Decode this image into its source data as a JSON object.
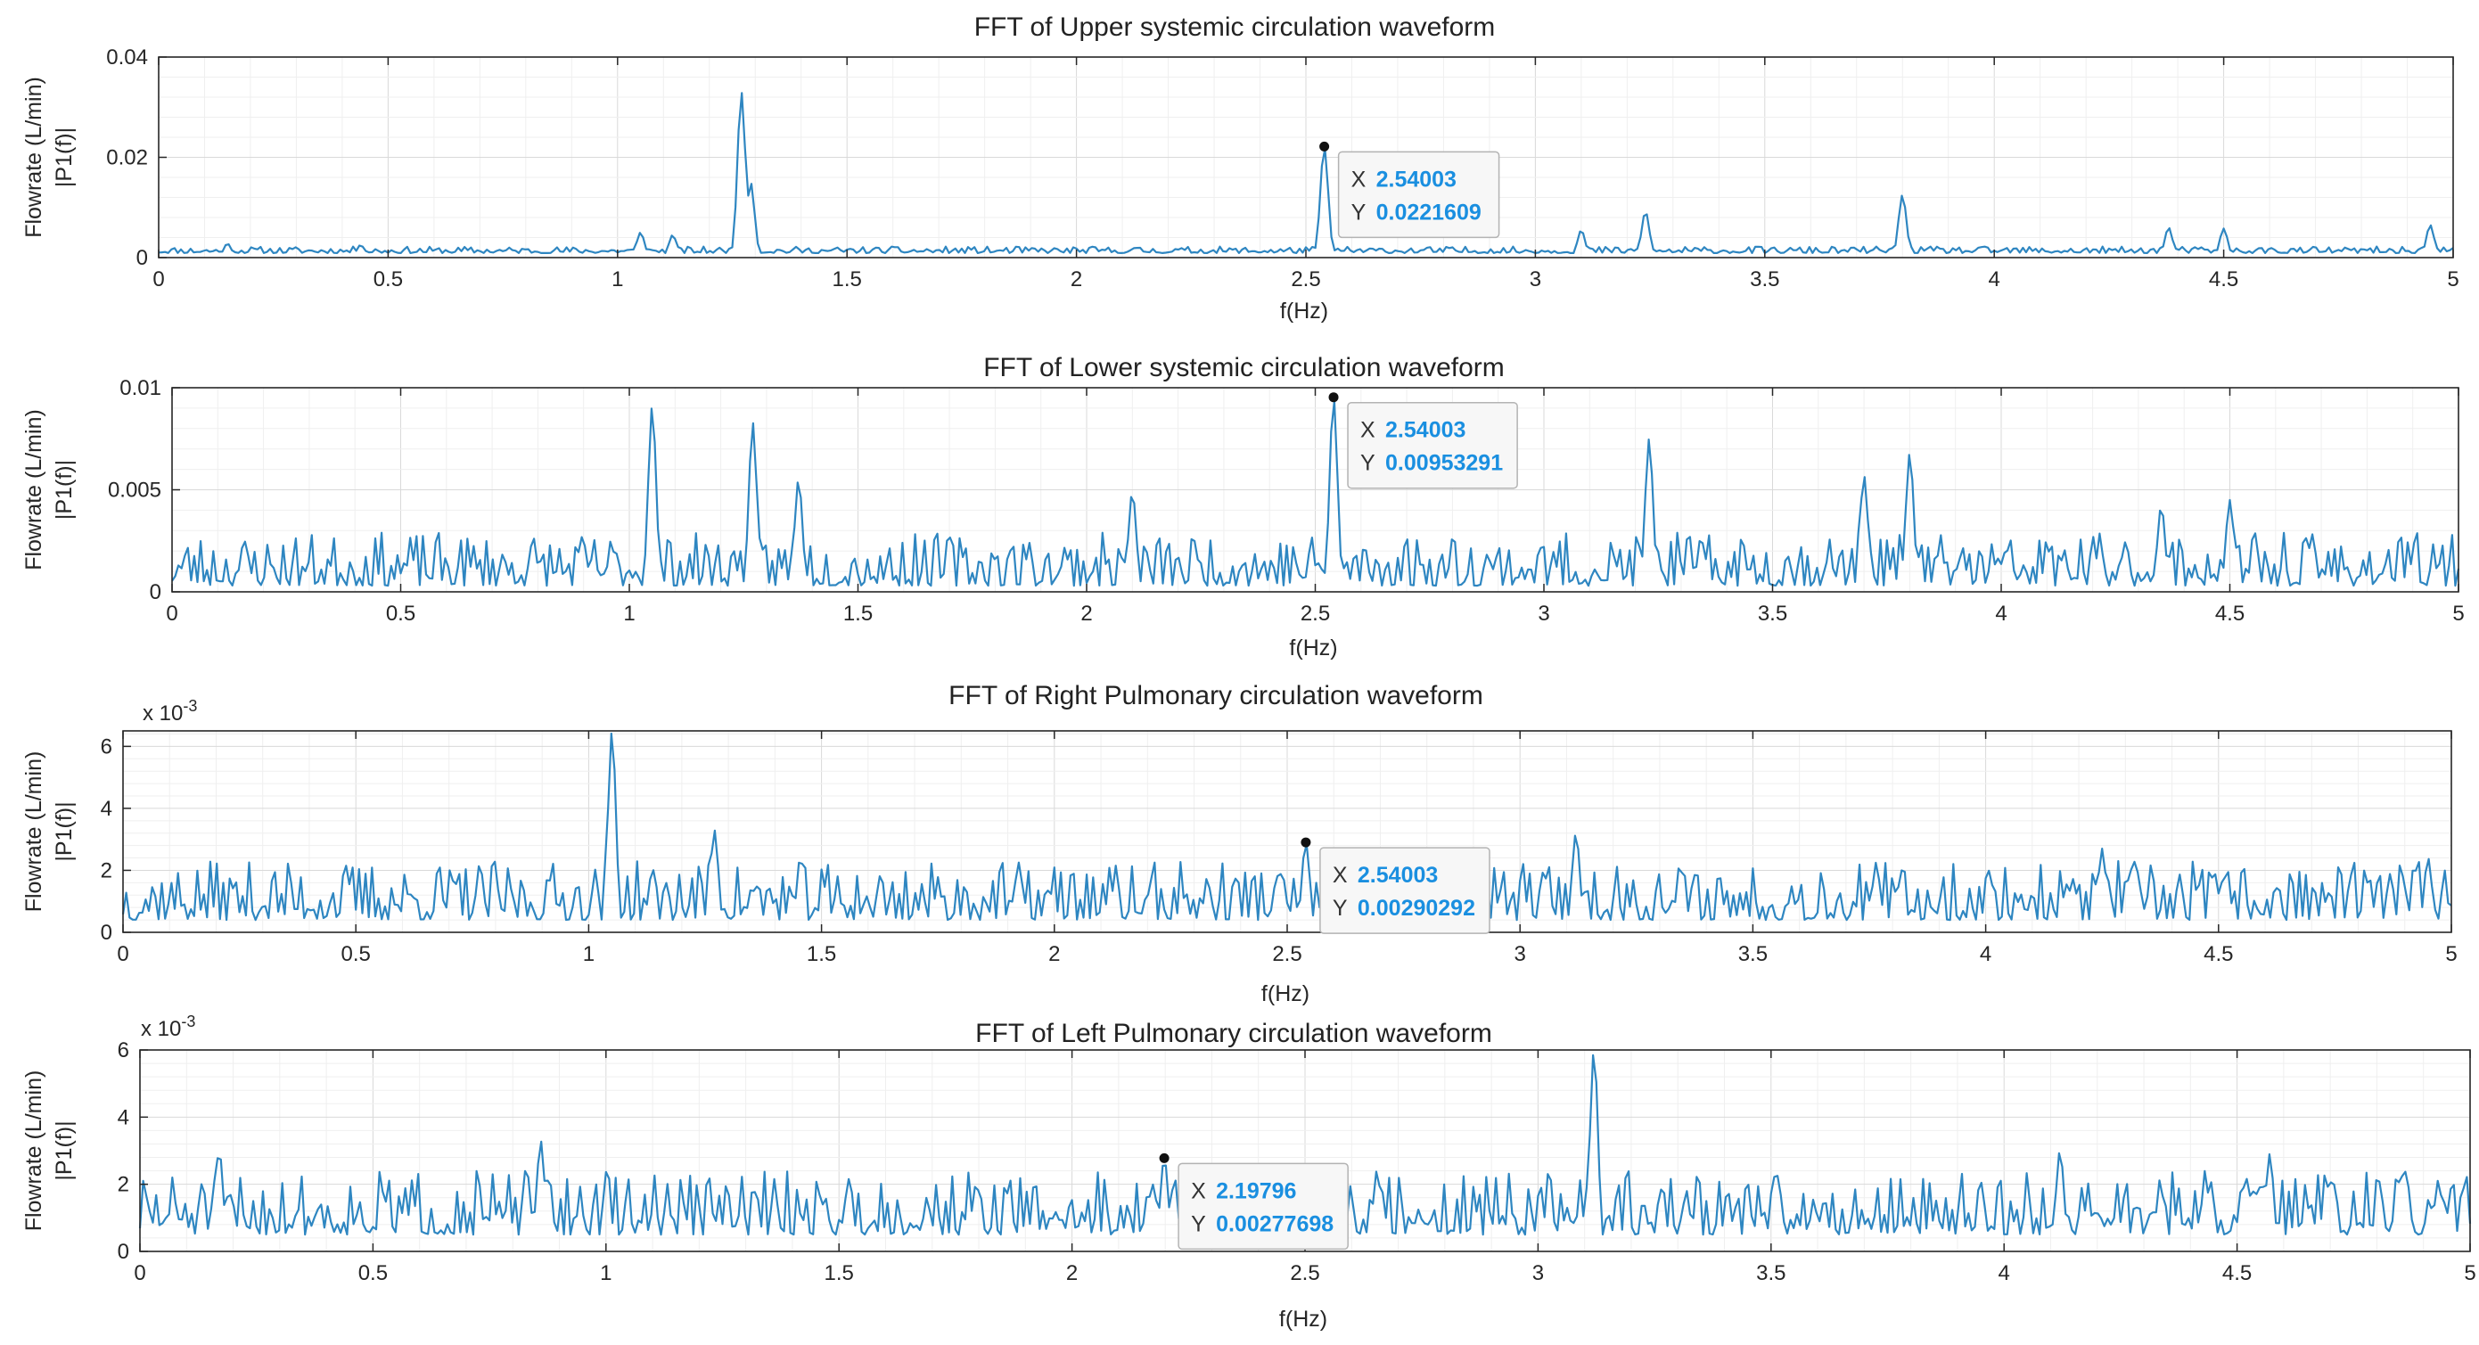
{
  "colors": {
    "line": "#2e86c1",
    "axis": "#262626",
    "grid_major": "#d9d9d9",
    "grid_minor": "#efefef",
    "tip_border": "#b3b3b3",
    "tip_bg": "#f7f7f7",
    "tip_value": "#1a8fe0",
    "marker": "#111111"
  },
  "chart_data": [
    {
      "type": "line",
      "title": "FFT of Upper systemic circulation waveform",
      "xlabel": "f(Hz)",
      "ylabel": [
        "Flowrate (L/min)",
        "|P1(f)|"
      ],
      "xlim": [
        0,
        5
      ],
      "ylim": [
        0,
        0.04
      ],
      "xticks": [
        0,
        0.5,
        1,
        1.5,
        2,
        2.5,
        3,
        3.5,
        4,
        4.5,
        5
      ],
      "xtick_labels": [
        "0",
        "0.5",
        "1",
        "1.5",
        "2",
        "2.5",
        "3",
        "3.5",
        "4",
        "4.5",
        "5"
      ],
      "yticks": [
        0,
        0.02,
        0.04
      ],
      "ytick_labels": [
        "0",
        "0.02",
        "0.04"
      ],
      "exponent": "",
      "grid": true,
      "noise": {
        "base": 0.0009,
        "amp": 0.0013,
        "seed": 11
      },
      "peaks": [
        [
          0.15,
          0.0028
        ],
        [
          0.44,
          0.0025
        ],
        [
          1.05,
          0.005
        ],
        [
          1.12,
          0.0045
        ],
        [
          1.27,
          0.033
        ],
        [
          1.29,
          0.015
        ],
        [
          2.54,
          0.0221609
        ],
        [
          3.1,
          0.0055
        ],
        [
          3.24,
          0.0092
        ],
        [
          3.8,
          0.0125
        ],
        [
          4.38,
          0.006
        ],
        [
          4.5,
          0.0058
        ],
        [
          4.95,
          0.0065
        ]
      ],
      "datatip": {
        "x_label": "X",
        "y_label": "Y",
        "x_text": "2.54003",
        "y_text": "0.0221609",
        "x": 2.54003,
        "y": 0.0221609
      }
    },
    {
      "type": "line",
      "title": "FFT of Lower systemic circulation waveform",
      "xlabel": "f(Hz)",
      "ylabel": [
        "Flowrate (L/min)",
        "|P1(f)|"
      ],
      "xlim": [
        0,
        5
      ],
      "ylim": [
        0,
        0.01
      ],
      "xticks": [
        0,
        0.5,
        1,
        1.5,
        2,
        2.5,
        3,
        3.5,
        4,
        4.5,
        5
      ],
      "xtick_labels": [
        "0",
        "0.5",
        "1",
        "1.5",
        "2",
        "2.5",
        "3",
        "3.5",
        "4",
        "4.5",
        "5"
      ],
      "yticks": [
        0,
        0.005,
        0.01
      ],
      "ytick_labels": [
        "0",
        "0.005",
        "0.01"
      ],
      "exponent": "",
      "grid": true,
      "noise": {
        "base": 0.0003,
        "amp": 0.0026,
        "seed": 23
      },
      "peaks": [
        [
          1.05,
          0.0091
        ],
        [
          1.27,
          0.0083
        ],
        [
          1.37,
          0.0055
        ],
        [
          2.1,
          0.0049
        ],
        [
          2.54,
          0.00953291
        ],
        [
          3.23,
          0.0075
        ],
        [
          3.7,
          0.0057
        ],
        [
          3.8,
          0.0068
        ],
        [
          4.35,
          0.0042
        ],
        [
          4.5,
          0.0045
        ]
      ],
      "datatip": {
        "x_label": "X",
        "y_label": "Y",
        "x_text": "2.54003",
        "y_text": "0.00953291",
        "x": 2.54003,
        "y": 0.00953291
      }
    },
    {
      "type": "line",
      "title": "FFT of Right Pulmonary circulation waveform",
      "xlabel": "f(Hz)",
      "ylabel": [
        "Flowrate (L/min)",
        "|P1(f)|"
      ],
      "xlim": [
        0,
        5
      ],
      "ylim": [
        0,
        0.0065
      ],
      "xticks": [
        0,
        0.5,
        1,
        1.5,
        2,
        2.5,
        3,
        3.5,
        4,
        4.5,
        5
      ],
      "xtick_labels": [
        "0",
        "0.5",
        "1",
        "1.5",
        "2",
        "2.5",
        "3",
        "3.5",
        "4",
        "4.5",
        "5"
      ],
      "yticks": [
        0,
        0.002,
        0.004,
        0.006
      ],
      "ytick_labels": [
        "0",
        "2",
        "4",
        "6"
      ],
      "exponent": "-3",
      "grid": true,
      "noise": {
        "base": 0.0004,
        "amp": 0.0019,
        "seed": 37
      },
      "peaks": [
        [
          1.05,
          0.0065
        ],
        [
          1.27,
          0.0033
        ],
        [
          2.54,
          0.00290292
        ],
        [
          3.12,
          0.0032
        ],
        [
          4.25,
          0.0027
        ],
        [
          4.95,
          0.0024
        ]
      ],
      "datatip": {
        "x_label": "X",
        "y_label": "Y",
        "x_text": "2.54003",
        "y_text": "0.00290292",
        "x": 2.54003,
        "y": 0.00290292
      }
    },
    {
      "type": "line",
      "title": "FFT of Left Pulmonary circulation waveform",
      "xlabel": "f(Hz)",
      "ylabel": [
        "Flowrate (L/min)",
        "|P1(f)|"
      ],
      "xlim": [
        0,
        5
      ],
      "ylim": [
        0,
        0.006
      ],
      "xticks": [
        0,
        0.5,
        1,
        1.5,
        2,
        2.5,
        3,
        3.5,
        4,
        4.5,
        5
      ],
      "xtick_labels": [
        "0",
        "0.5",
        "1",
        "1.5",
        "2",
        "2.5",
        "3",
        "3.5",
        "4",
        "4.5",
        "5"
      ],
      "yticks": [
        0,
        0.002,
        0.004,
        0.006
      ],
      "ytick_labels": [
        "0",
        "2",
        "4",
        "6"
      ],
      "exponent": "-3",
      "grid": true,
      "noise": {
        "base": 0.0005,
        "amp": 0.0019,
        "seed": 51
      },
      "peaks": [
        [
          0.17,
          0.003
        ],
        [
          0.86,
          0.0033
        ],
        [
          2.19796,
          0.00277698
        ],
        [
          3.12,
          0.006
        ],
        [
          4.12,
          0.003
        ],
        [
          4.57,
          0.0029
        ]
      ],
      "datatip": {
        "x_label": "X",
        "y_label": "Y",
        "x_text": "2.19796",
        "y_text": "0.00277698",
        "x": 2.19796,
        "y": 0.00277698
      }
    }
  ]
}
